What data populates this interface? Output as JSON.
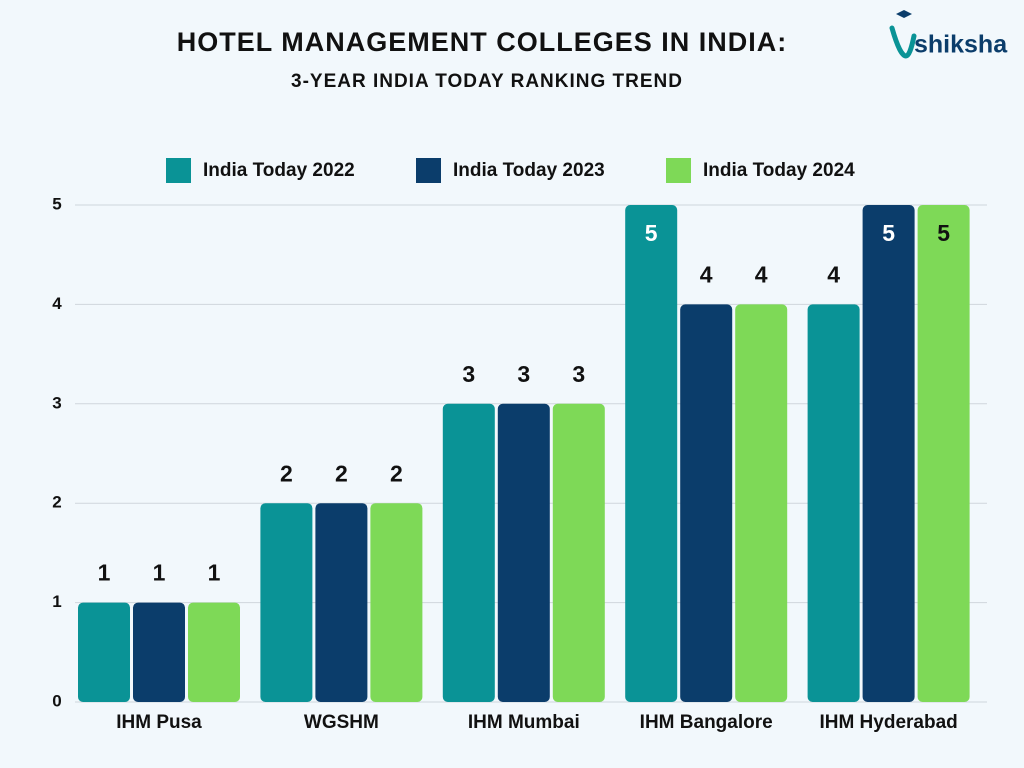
{
  "brand": "shiksha",
  "chart_data": {
    "type": "bar",
    "title": "HOTEL MANAGEMENT COLLEGES IN INDIA:",
    "subtitle": "3-YEAR INDIA TODAY RANKING TREND",
    "categories": [
      "IHM Pusa",
      "WGSHM",
      "IHM Mumbai",
      "IHM Bangalore",
      "IHM Hyderabad"
    ],
    "series": [
      {
        "name": "India Today 2022",
        "color": "#0a9396",
        "values": [
          1,
          2,
          3,
          5,
          4
        ]
      },
      {
        "name": "India Today 2023",
        "color": "#0b3d6b",
        "values": [
          1,
          2,
          3,
          4,
          5
        ]
      },
      {
        "name": "India Today 2024",
        "color": "#7ed957",
        "values": [
          1,
          2,
          3,
          4,
          5
        ]
      }
    ],
    "ylim": [
      0,
      5
    ],
    "yticks": [
      0,
      1,
      2,
      3,
      4,
      5
    ],
    "grid": true,
    "legend": "top"
  }
}
